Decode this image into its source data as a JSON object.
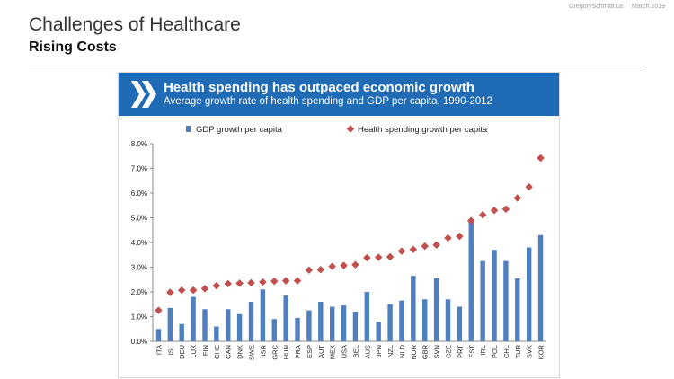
{
  "header": {
    "site": "GregorySchmidt.ca",
    "date": "March 2019",
    "title": "Challenges of Healthcare",
    "subtitle": "Rising Costs"
  },
  "figure": {
    "banner_title": "Health spending has outpaced economic growth",
    "banner_subtitle": "Average growth rate of health spending and GDP per capita, 1990-2012",
    "logo_icon": "oecd-chevron-logo",
    "colors": {
      "banner": "#1f6bb5",
      "bars": "#4f7fbf",
      "markers": "#c0504d"
    }
  },
  "chart_data": {
    "type": "bar",
    "title": "Health spending has outpaced economic growth",
    "subtitle": "Average growth rate of health spending and GDP per capita, 1990-2012",
    "xlabel": "",
    "ylabel": "",
    "ylim": [
      0,
      0.08
    ],
    "yticks": [
      "0.0%",
      "1.0%",
      "2.0%",
      "3.0%",
      "4.0%",
      "5.0%",
      "6.0%",
      "7.0%",
      "8.0%"
    ],
    "legend_position": "top",
    "categories": [
      "ITA",
      "ISL",
      "DEU",
      "LUX",
      "FIN",
      "CHE",
      "CAN",
      "DNK",
      "SWE",
      "ISR",
      "GRC",
      "HUN",
      "FRA",
      "ESP",
      "AUT",
      "MEX",
      "USA",
      "BEL",
      "AUS",
      "JPN",
      "NZL",
      "NLD",
      "NOR",
      "GBR",
      "SVN",
      "CZE",
      "PRT",
      "EST",
      "IRL",
      "POL",
      "CHL",
      "TUR",
      "SVK",
      "KOR"
    ],
    "series": [
      {
        "name": "GDP growth per capita",
        "kind": "bar",
        "values": [
          0.5,
          1.35,
          0.7,
          1.8,
          1.3,
          0.6,
          1.3,
          1.1,
          1.6,
          2.1,
          0.9,
          1.85,
          0.95,
          1.25,
          1.6,
          1.4,
          1.45,
          1.2,
          2.0,
          0.8,
          1.5,
          1.65,
          2.65,
          1.7,
          2.55,
          1.7,
          1.4,
          4.95,
          3.25,
          3.7,
          3.25,
          2.55,
          3.8,
          4.3
        ]
      },
      {
        "name": "Health spending growth per capita",
        "kind": "marker",
        "values": [
          1.25,
          1.98,
          2.07,
          2.07,
          2.13,
          2.25,
          2.33,
          2.35,
          2.37,
          2.4,
          2.43,
          2.45,
          2.45,
          2.88,
          2.9,
          3.03,
          3.07,
          3.1,
          3.38,
          3.4,
          3.42,
          3.65,
          3.72,
          3.85,
          3.9,
          4.18,
          4.25,
          4.88,
          5.12,
          5.3,
          5.35,
          5.8,
          6.25,
          7.42
        ]
      }
    ]
  }
}
